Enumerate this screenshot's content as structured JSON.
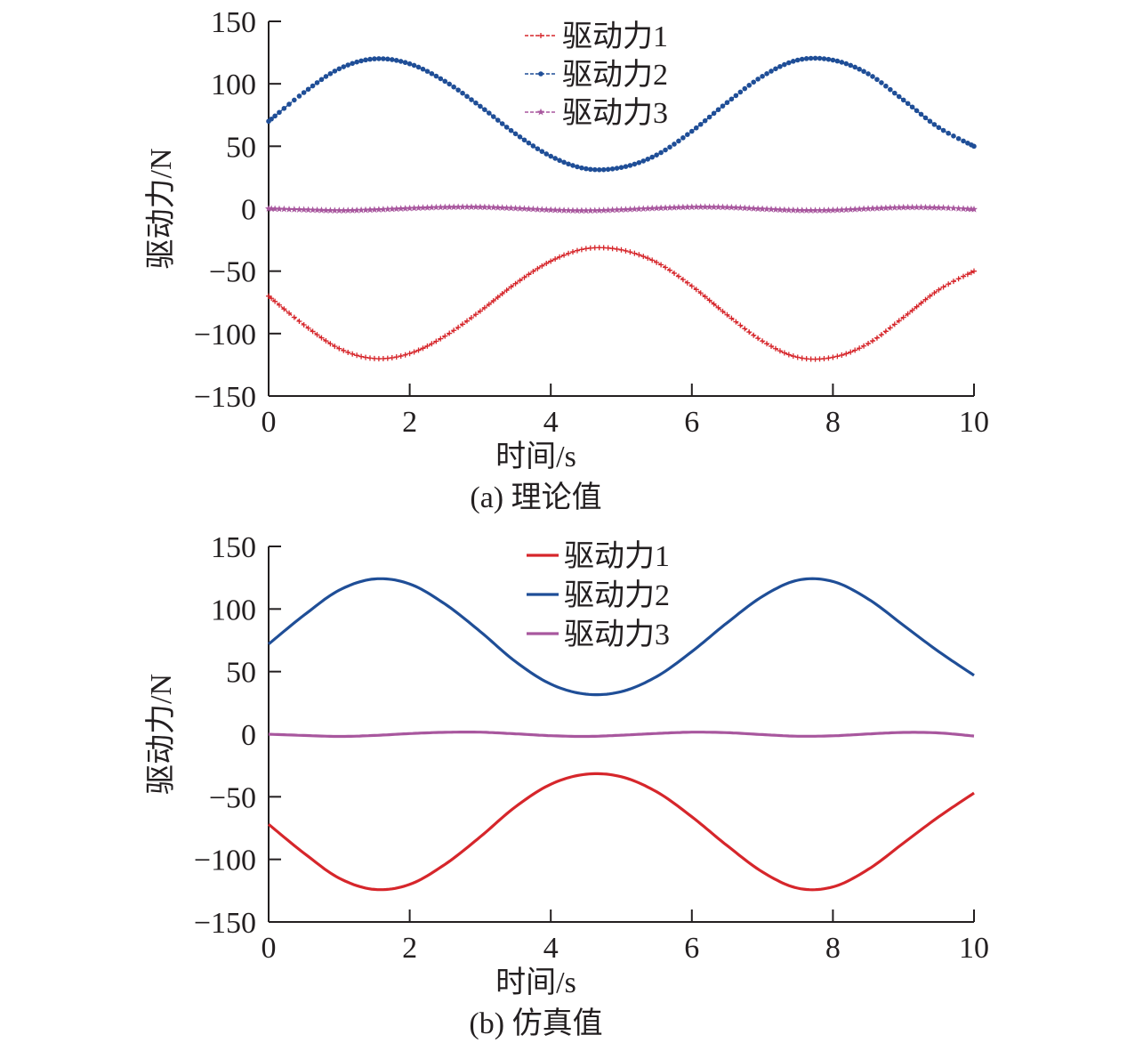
{
  "colors": {
    "series1": "#d6262b",
    "series2": "#1f4e97",
    "series3": "#a8579e",
    "axis": "#231f20"
  },
  "chart_data": [
    {
      "type": "line",
      "marker_style": "dashed-with-markers",
      "caption": "(a) 理论值",
      "xlabel": "时间/s",
      "ylabel": "驱动力/N",
      "xlim": [
        0,
        10
      ],
      "ylim": [
        -150,
        150
      ],
      "xticks": [
        0,
        2,
        4,
        6,
        8,
        10
      ],
      "yticks": [
        150,
        100,
        50,
        0,
        -50,
        -100,
        -150
      ],
      "xtick_labels": [
        "0",
        "2",
        "4",
        "6",
        "8",
        "10"
      ],
      "ytick_labels": [
        "150",
        "100",
        "50",
        "0",
        "−50",
        "−100",
        "−150"
      ],
      "grid": false,
      "legend_position": "top-center",
      "x": [
        0,
        0.5,
        1,
        1.5,
        2,
        2.5,
        3,
        3.5,
        4,
        4.5,
        5,
        5.5,
        6,
        6.5,
        7,
        7.5,
        8,
        8.5,
        9,
        9.5,
        10
      ],
      "series": [
        {
          "name": "驱动力1",
          "marker": "plus",
          "values": [
            -70,
            -93,
            -112,
            -120,
            -116,
            -102,
            -82,
            -60,
            -42,
            -32,
            -33,
            -43,
            -62,
            -85,
            -106,
            -119,
            -119,
            -108,
            -87,
            -65,
            -50
          ]
        },
        {
          "name": "驱动力2",
          "marker": "dot",
          "values": [
            70,
            93,
            112,
            120,
            116,
            102,
            82,
            60,
            42,
            32,
            33,
            43,
            62,
            85,
            106,
            119,
            119,
            108,
            87,
            65,
            50
          ]
        },
        {
          "name": "驱动力3",
          "marker": "star",
          "values": [
            0,
            -0.8,
            -1.5,
            -0.8,
            0.3,
            1.2,
            1.3,
            0.3,
            -1,
            -1.6,
            -0.8,
            0.4,
            1.3,
            1.1,
            -0.2,
            -1.3,
            -1.2,
            0,
            1,
            0.8,
            -0.5
          ]
        }
      ]
    },
    {
      "type": "line",
      "marker_style": "solid",
      "caption": "(b) 仿真值",
      "xlabel": "时间/s",
      "ylabel": "驱动力/N",
      "xlim": [
        0,
        10
      ],
      "ylim": [
        -150,
        150
      ],
      "xticks": [
        0,
        2,
        4,
        6,
        8,
        10
      ],
      "yticks": [
        150,
        100,
        50,
        0,
        -50,
        -100,
        -150
      ],
      "xtick_labels": [
        "0",
        "2",
        "4",
        "6",
        "8",
        "10"
      ],
      "ytick_labels": [
        "150",
        "100",
        "50",
        "0",
        "−50",
        "−100",
        "−150"
      ],
      "grid": false,
      "legend_position": "top-center",
      "x": [
        0,
        0.5,
        1,
        1.5,
        2,
        2.5,
        3,
        3.5,
        4,
        4.5,
        5,
        5.5,
        6,
        6.5,
        7,
        7.5,
        8,
        8.5,
        9,
        9.5,
        10
      ],
      "series": [
        {
          "name": "驱动力1",
          "values": [
            -72,
            -95,
            -115,
            -124,
            -120,
            -104,
            -82,
            -58,
            -40,
            -32,
            -34,
            -46,
            -66,
            -89,
            -110,
            -123,
            -122,
            -108,
            -87,
            -66,
            -47
          ]
        },
        {
          "name": "驱动力2",
          "values": [
            72,
            95,
            115,
            124,
            120,
            104,
            82,
            58,
            40,
            32,
            34,
            46,
            66,
            89,
            110,
            123,
            122,
            108,
            87,
            66,
            47
          ]
        },
        {
          "name": "驱动力3",
          "values": [
            0,
            -1,
            -1.8,
            -1,
            0.5,
            1.5,
            1.6,
            0.3,
            -1.2,
            -1.8,
            -0.8,
            0.6,
            1.6,
            1.2,
            -0.3,
            -1.6,
            -1.3,
            0.2,
            1.4,
            1,
            -1.5
          ]
        }
      ]
    }
  ]
}
